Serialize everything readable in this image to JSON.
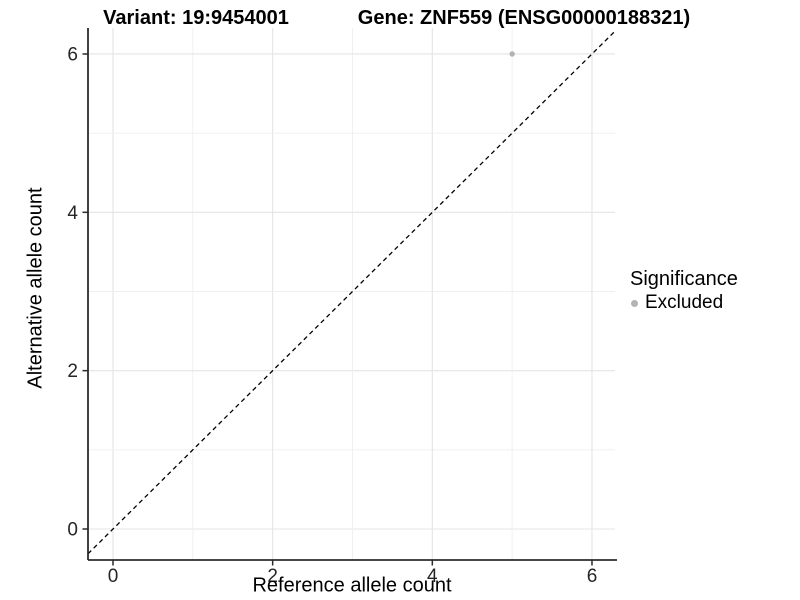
{
  "colors": {
    "background": "#ffffff",
    "point": "#b3b3b3",
    "grid_major": "#e4e4e4",
    "grid_minor": "#efefef",
    "axis": "#2b2b2b",
    "reference_line": "#000000",
    "tick_text": "#262626"
  },
  "chart_data": {
    "type": "scatter",
    "title_left": "Variant: 19:9454001",
    "title_right": "Gene: ZNF559 (ENSG00000188321)",
    "xlabel": "Reference allele count",
    "ylabel": "Alternative allele count",
    "xlim": [
      0,
      6
    ],
    "ylim": [
      0,
      6
    ],
    "x_ticks": [
      0,
      2,
      4,
      6
    ],
    "y_ticks": [
      0,
      2,
      4,
      6
    ],
    "grid_lines": [
      0,
      1,
      2,
      3,
      4,
      5,
      6
    ],
    "grid": true,
    "points": [
      {
        "x": 5,
        "y": 6,
        "series": "Excluded"
      }
    ],
    "reference_line": {
      "type": "identity",
      "slope": 1,
      "intercept": 0,
      "style": "dashed"
    },
    "legend": {
      "title": "Significance",
      "position": "right",
      "entries": [
        {
          "label": "Excluded",
          "color": "#b3b3b3"
        }
      ]
    }
  }
}
